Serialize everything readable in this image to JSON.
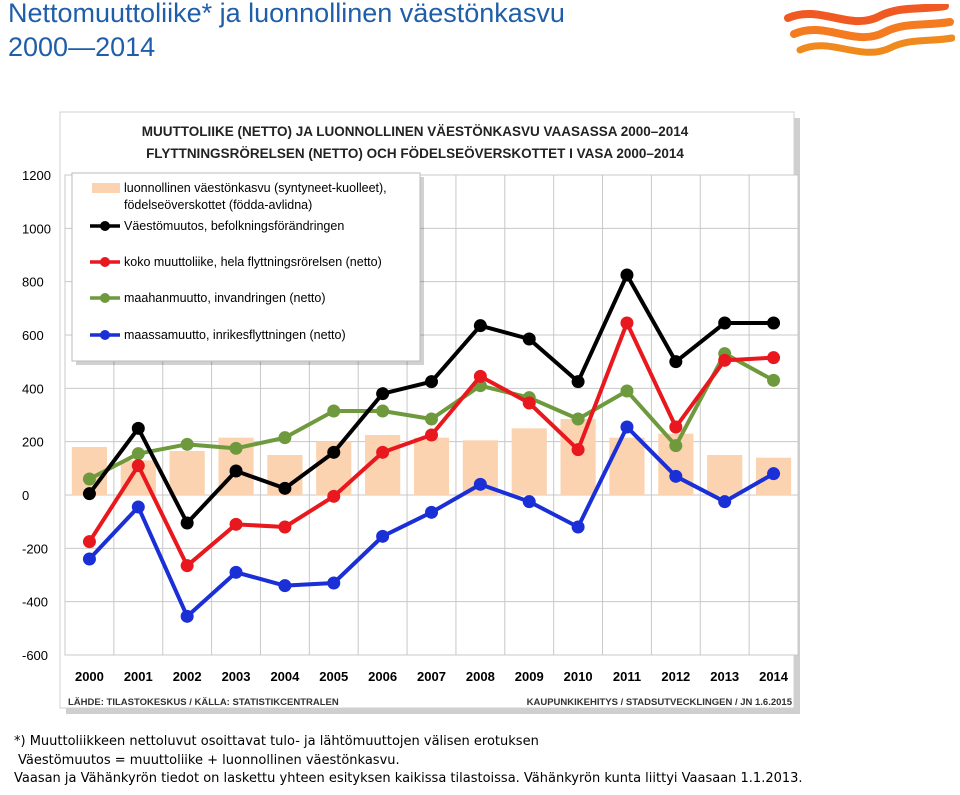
{
  "slide": {
    "title_line1": "Nettomuuttoliike* ja luonnollinen väestönkasvu",
    "title_line2": "2000—2014"
  },
  "chart_data": {
    "type": "bar+line",
    "title": "MUUTTOLIIKE (NETTO) JA LUONNOLLINEN VÄESTÖNKASVU VAASASSA 2000–2014",
    "subtitle": "FLYTTNINGSRÖRELSEN (NETTO) OCH FÖDELSEÖVERSKOTTET I VASA 2000–2014",
    "categories": [
      "2000",
      "2001",
      "2002",
      "2003",
      "2004",
      "2005",
      "2006",
      "2007",
      "2008",
      "2009",
      "2010",
      "2011",
      "2012",
      "2013",
      "2014"
    ],
    "ylim": [
      -600,
      1200
    ],
    "yticks": [
      1200,
      1000,
      800,
      600,
      400,
      200,
      0,
      -200,
      -400,
      -600
    ],
    "grid": true,
    "legend_position": "top-left",
    "bar_series": {
      "name_line1": "luonnollinen väestönkasvu (syntyneet-kuolleet),",
      "name_line2": "födelseöverskottet (födda-avlidna)",
      "color": "#fbd3b0",
      "values": [
        180,
        130,
        165,
        215,
        150,
        200,
        225,
        215,
        205,
        250,
        285,
        215,
        230,
        150,
        140
      ]
    },
    "line_series": [
      {
        "name": "Väestömuutos, befolkningsförändringen",
        "color": "#000000",
        "values": [
          5,
          250,
          -105,
          90,
          25,
          160,
          380,
          425,
          635,
          585,
          425,
          825,
          500,
          645,
          645
        ]
      },
      {
        "name": "koko muuttoliike, hela flyttningsrörelsen (netto)",
        "color": "#e8181e",
        "values": [
          -175,
          110,
          -265,
          -110,
          -120,
          -5,
          160,
          225,
          445,
          345,
          170,
          645,
          255,
          505,
          515
        ]
      },
      {
        "name": "maahanmuutto, invandringen (netto)",
        "color": "#6e9a3d",
        "values": [
          60,
          155,
          190,
          175,
          215,
          315,
          315,
          285,
          410,
          365,
          285,
          390,
          185,
          530,
          430
        ]
      },
      {
        "name": "maassamuutto, inrikesflyttningen (netto)",
        "color": "#1a2fd6",
        "values": [
          -240,
          -45,
          -455,
          -290,
          -340,
          -330,
          -155,
          -65,
          40,
          -25,
          -120,
          255,
          70,
          -25,
          80
        ]
      }
    ],
    "source_left": "LÄHDE: TILASTOKESKUS / KÄLLA: STATISTIKCENTRALEN",
    "source_right": "KAUPUNKIKEHITYS / STADSUTVECKLINGEN / JN 1.6.2015"
  },
  "notes": {
    "line1": "*) Muuttoliikkeen nettoluvut osoittavat tulo- ja lähtömuuttojen välisen erotuksen",
    "line2": "Väestömuutos = muuttoliike + luonnollinen väestönkasvu.",
    "line3": "Vaasan ja Vähänkyrön tiedot on laskettu yhteen esityksen kaikissa tilastoissa. Vähänkyrön kunta liittyi Vaasaan 1.1.2013."
  }
}
